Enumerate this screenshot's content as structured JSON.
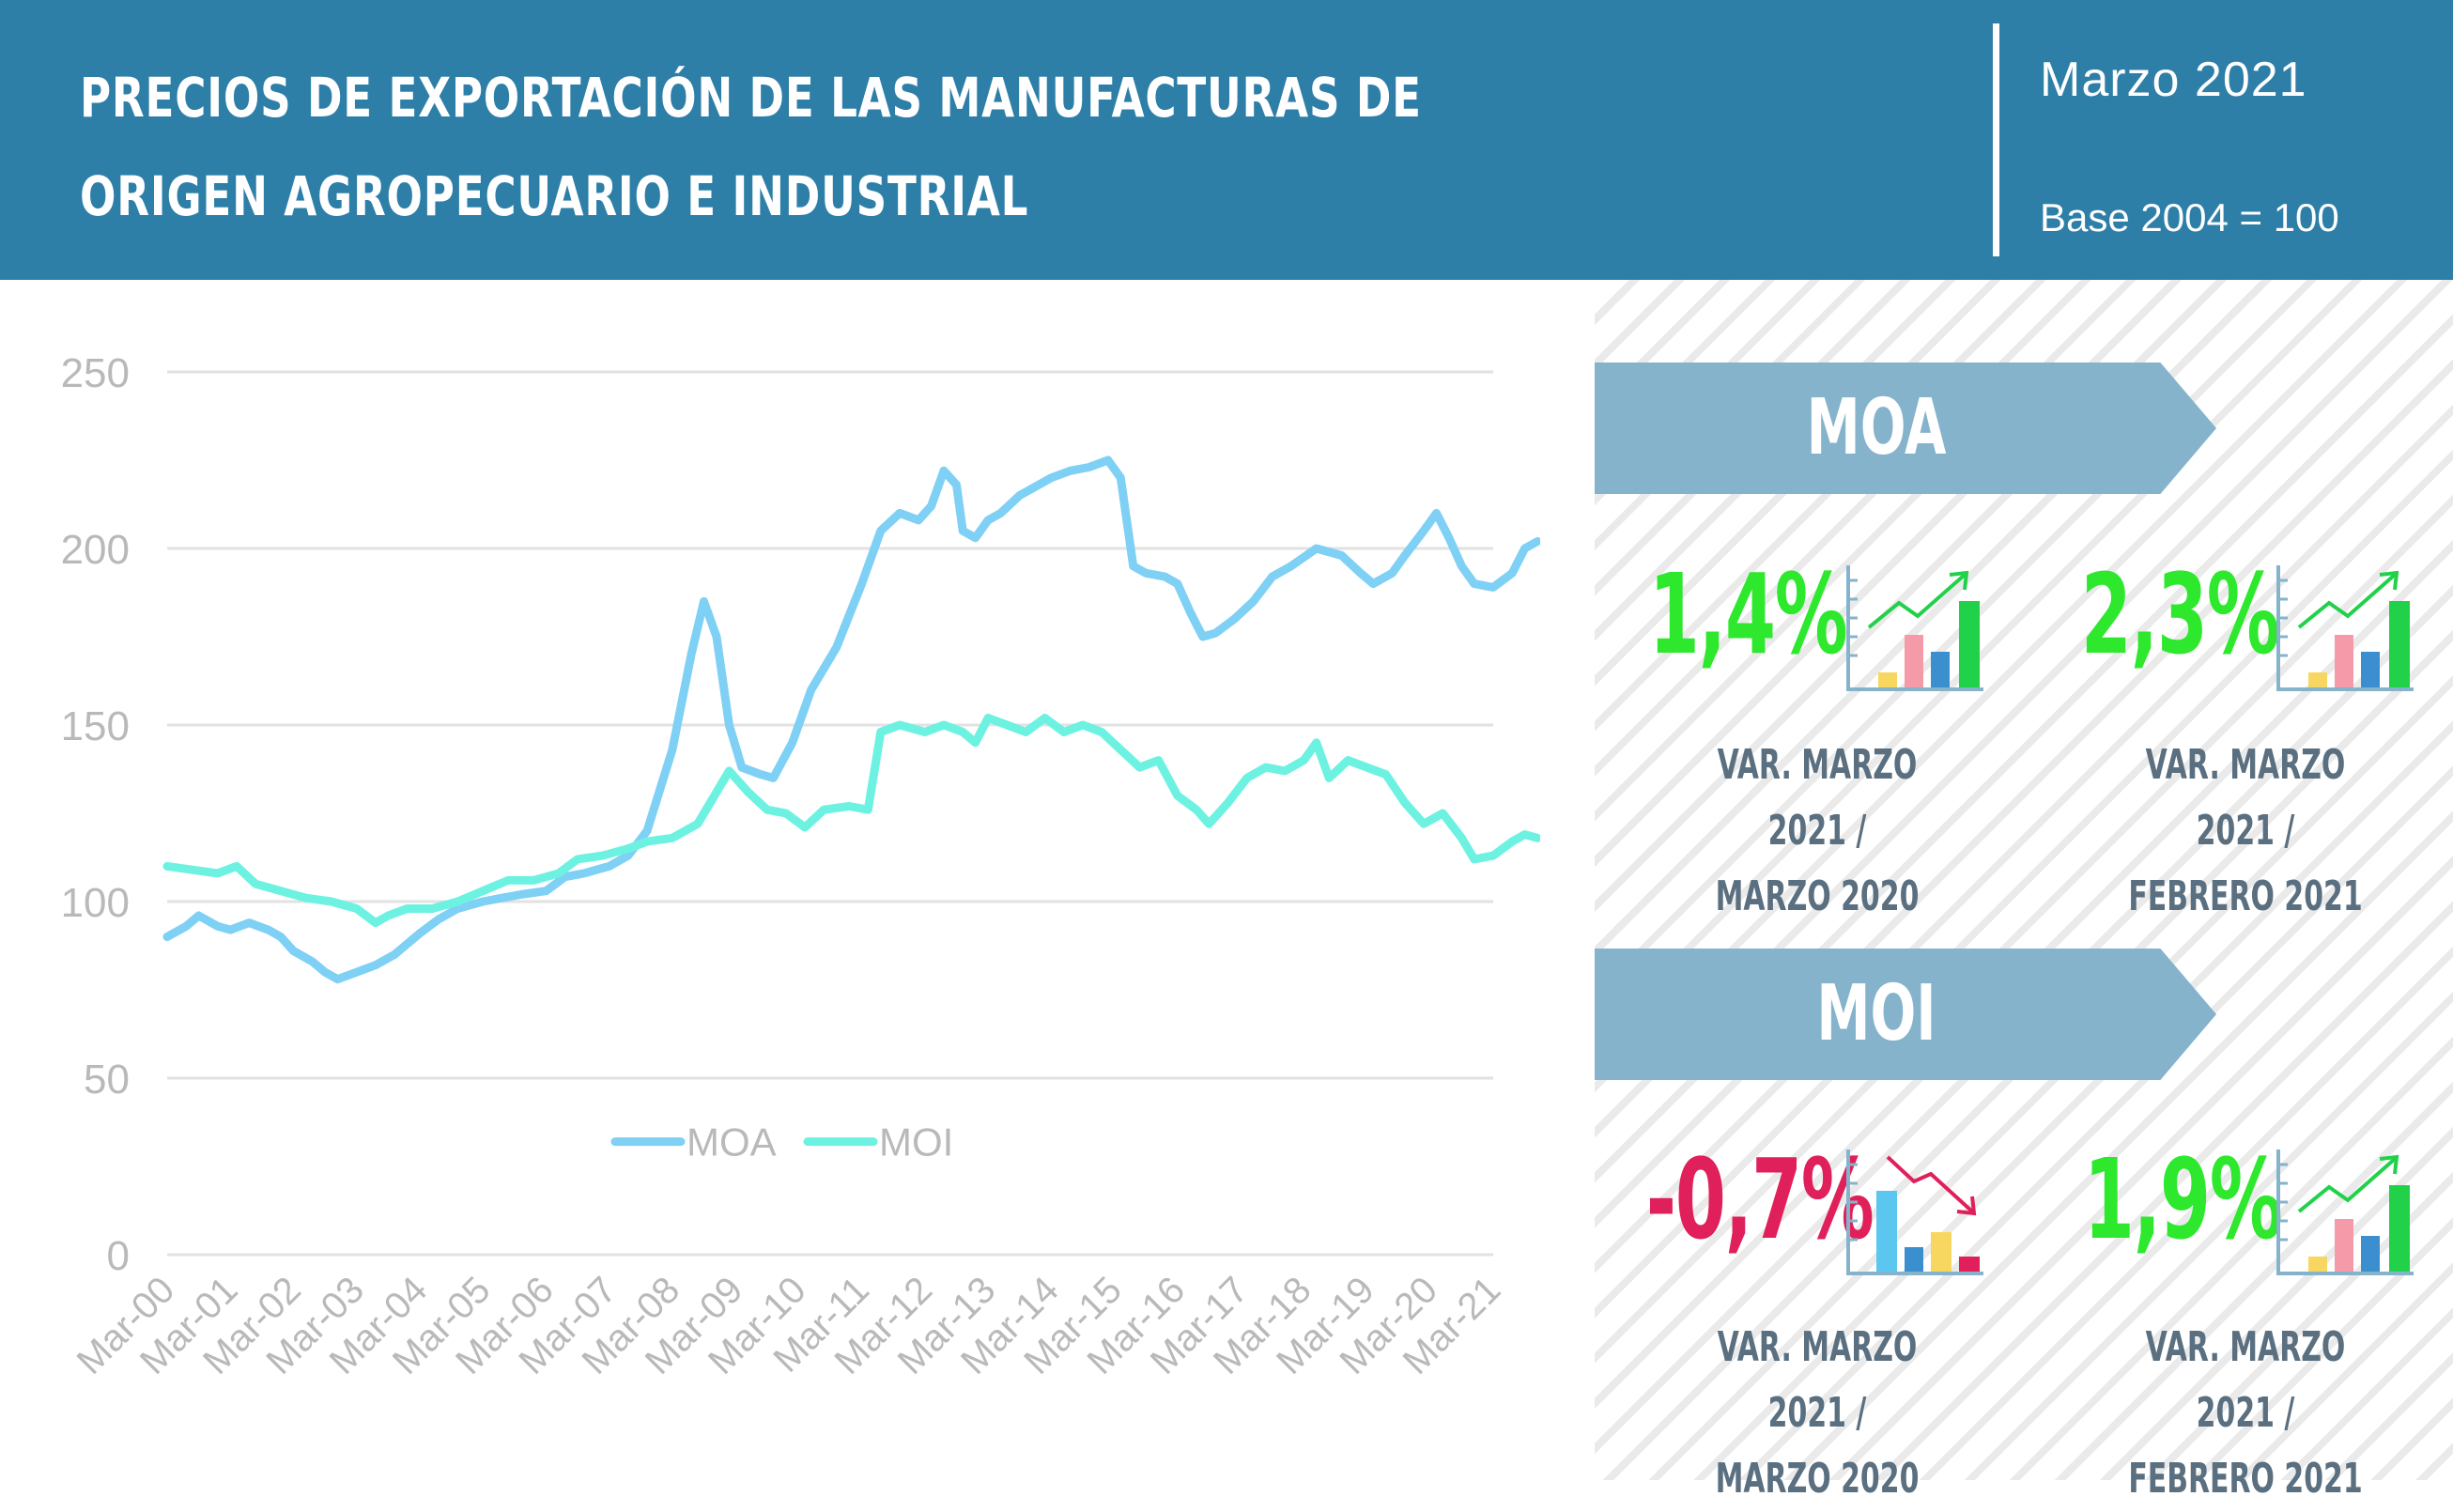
{
  "header": {
    "title": "PRECIOS DE EXPORTACIÓN DE LAS MANUFACTURAS DE ORIGEN AGROPECUARIO E INDUSTRIAL",
    "date": "Marzo 2021",
    "base": "Base 2004 = 100",
    "background_color": "#2e7fa8"
  },
  "colors": {
    "moa_line": "#7fd0f5",
    "moi_line": "#6df2e2",
    "positive": "#2ee82e",
    "negative": "#e0205a",
    "banner": "#86b3cc",
    "caption": "#5a6f80"
  },
  "panels": [
    {
      "name": "MOA",
      "stats": [
        {
          "value": "1,4%",
          "sign": "positive",
          "icon": "chart-up-icon",
          "caption_1": "VAR. MARZO 2021 /",
          "caption_2": "MARZO 2020"
        },
        {
          "value": "2,3%",
          "sign": "positive",
          "icon": "chart-up-icon",
          "caption_1": "VAR. MARZO 2021 /",
          "caption_2": "FEBRERO 2021"
        }
      ]
    },
    {
      "name": "MOI",
      "stats": [
        {
          "value": "-0,7%",
          "sign": "negative",
          "icon": "chart-down-icon",
          "caption_1": "VAR. MARZO 2021 /",
          "caption_2": "MARZO 2020"
        },
        {
          "value": "1,9%",
          "sign": "positive",
          "icon": "chart-up-icon",
          "caption_1": "VAR. MARZO 2021 /",
          "caption_2": "FEBRERO 2021"
        }
      ]
    }
  ],
  "chart_data": {
    "type": "line",
    "x": [
      "Mar-00",
      "Mar-01",
      "Mar-02",
      "Mar-03",
      "Mar-04",
      "Mar-05",
      "Mar-06",
      "Mar-07",
      "Mar-08",
      "Mar-09",
      "Mar-10",
      "Mar-11",
      "Mar-12",
      "Mar-13",
      "Mar-14",
      "Mar-15",
      "Mar-16",
      "Mar-17",
      "Mar-18",
      "Mar-19",
      "Mar-20",
      "Mar-21"
    ],
    "ylim": [
      0,
      250
    ],
    "yticks": [
      0,
      50,
      100,
      150,
      200,
      250
    ],
    "grid": true,
    "legend_position": "center",
    "series": [
      {
        "name": "MOA",
        "points": [
          [
            0,
            90
          ],
          [
            0.3,
            93
          ],
          [
            0.5,
            96
          ],
          [
            0.8,
            93
          ],
          [
            1,
            92
          ],
          [
            1.3,
            94
          ],
          [
            1.6,
            92
          ],
          [
            1.8,
            90
          ],
          [
            2,
            86
          ],
          [
            2.3,
            83
          ],
          [
            2.5,
            80
          ],
          [
            2.7,
            78
          ],
          [
            3,
            80
          ],
          [
            3.3,
            82
          ],
          [
            3.6,
            85
          ],
          [
            4,
            91
          ],
          [
            4.3,
            95
          ],
          [
            4.6,
            98
          ],
          [
            5,
            100
          ],
          [
            5.3,
            101
          ],
          [
            5.6,
            102
          ],
          [
            6,
            103
          ],
          [
            6.3,
            107
          ],
          [
            6.6,
            108
          ],
          [
            7,
            110
          ],
          [
            7.3,
            113
          ],
          [
            7.6,
            120
          ],
          [
            8,
            143
          ],
          [
            8.3,
            170
          ],
          [
            8.5,
            185
          ],
          [
            8.7,
            175
          ],
          [
            8.9,
            150
          ],
          [
            9.1,
            138
          ],
          [
            9.4,
            136
          ],
          [
            9.6,
            135
          ],
          [
            9.9,
            145
          ],
          [
            10.2,
            160
          ],
          [
            10.6,
            172
          ],
          [
            11,
            190
          ],
          [
            11.3,
            205
          ],
          [
            11.6,
            210
          ],
          [
            11.9,
            208
          ],
          [
            12.1,
            212
          ],
          [
            12.3,
            222
          ],
          [
            12.5,
            218
          ],
          [
            12.6,
            205
          ],
          [
            12.8,
            203
          ],
          [
            13,
            208
          ],
          [
            13.2,
            210
          ],
          [
            13.5,
            215
          ],
          [
            13.8,
            218
          ],
          [
            14,
            220
          ],
          [
            14.3,
            222
          ],
          [
            14.6,
            223
          ],
          [
            14.9,
            225
          ],
          [
            15.1,
            220
          ],
          [
            15.3,
            195
          ],
          [
            15.5,
            193
          ],
          [
            15.8,
            192
          ],
          [
            16,
            190
          ],
          [
            16.2,
            182
          ],
          [
            16.4,
            175
          ],
          [
            16.6,
            176
          ],
          [
            16.9,
            180
          ],
          [
            17.2,
            185
          ],
          [
            17.5,
            192
          ],
          [
            17.8,
            195
          ],
          [
            18.2,
            200
          ],
          [
            18.6,
            198
          ],
          [
            18.9,
            193
          ],
          [
            19.1,
            190
          ],
          [
            19.4,
            193
          ],
          [
            19.6,
            198
          ],
          [
            19.9,
            205
          ],
          [
            20.1,
            210
          ],
          [
            20.3,
            203
          ],
          [
            20.5,
            195
          ],
          [
            20.7,
            190
          ],
          [
            21,
            189
          ],
          [
            21.3,
            193
          ],
          [
            21.5,
            200
          ],
          [
            21.7,
            202
          ]
        ]
      },
      {
        "name": "MOI",
        "points": [
          [
            0,
            110
          ],
          [
            0.4,
            109
          ],
          [
            0.8,
            108
          ],
          [
            1.1,
            110
          ],
          [
            1.4,
            105
          ],
          [
            1.8,
            103
          ],
          [
            2.2,
            101
          ],
          [
            2.6,
            100
          ],
          [
            3,
            98
          ],
          [
            3.3,
            94
          ],
          [
            3.5,
            96
          ],
          [
            3.8,
            98
          ],
          [
            4.2,
            98
          ],
          [
            4.6,
            100
          ],
          [
            5,
            103
          ],
          [
            5.4,
            106
          ],
          [
            5.8,
            106
          ],
          [
            6.2,
            108
          ],
          [
            6.5,
            112
          ],
          [
            6.9,
            113
          ],
          [
            7.3,
            115
          ],
          [
            7.6,
            117
          ],
          [
            8,
            118
          ],
          [
            8.4,
            122
          ],
          [
            8.7,
            131
          ],
          [
            8.9,
            137
          ],
          [
            9.2,
            131
          ],
          [
            9.5,
            126
          ],
          [
            9.8,
            125
          ],
          [
            10.1,
            121
          ],
          [
            10.4,
            126
          ],
          [
            10.8,
            127
          ],
          [
            11.1,
            126
          ],
          [
            11.3,
            148
          ],
          [
            11.6,
            150
          ],
          [
            12,
            148
          ],
          [
            12.3,
            150
          ],
          [
            12.6,
            148
          ],
          [
            12.8,
            145
          ],
          [
            13,
            152
          ],
          [
            13.3,
            150
          ],
          [
            13.6,
            148
          ],
          [
            13.9,
            152
          ],
          [
            14.2,
            148
          ],
          [
            14.5,
            150
          ],
          [
            14.8,
            148
          ],
          [
            15.1,
            143
          ],
          [
            15.4,
            138
          ],
          [
            15.7,
            140
          ],
          [
            16,
            130
          ],
          [
            16.3,
            126
          ],
          [
            16.5,
            122
          ],
          [
            16.8,
            128
          ],
          [
            17.1,
            135
          ],
          [
            17.4,
            138
          ],
          [
            17.7,
            137
          ],
          [
            18,
            140
          ],
          [
            18.2,
            145
          ],
          [
            18.4,
            135
          ],
          [
            18.7,
            140
          ],
          [
            19,
            138
          ],
          [
            19.3,
            136
          ],
          [
            19.6,
            128
          ],
          [
            19.9,
            122
          ],
          [
            20.2,
            125
          ],
          [
            20.5,
            118
          ],
          [
            20.7,
            112
          ],
          [
            21,
            113
          ],
          [
            21.3,
            117
          ],
          [
            21.5,
            119
          ],
          [
            21.7,
            118
          ]
        ]
      }
    ]
  }
}
